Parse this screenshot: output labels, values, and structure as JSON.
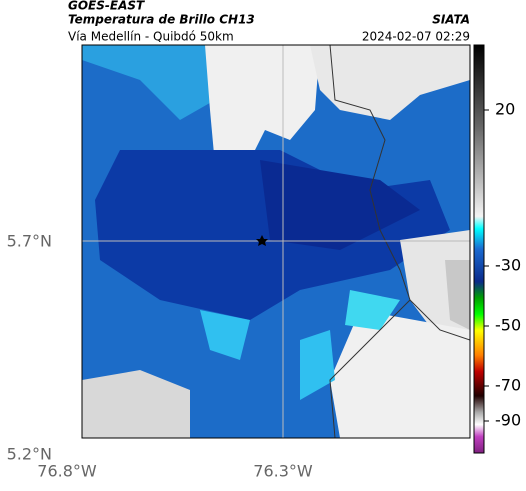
{
  "header": {
    "satellite": "GOES-EAST",
    "product": "Temperatura de Brillo CH13",
    "route": "Vía Medellín - Quibdó 50km",
    "source": "SIATA",
    "timestamp": "2024-02-07 02:29"
  },
  "map": {
    "lat_labels": [
      "5.7°N",
      "5.2°N"
    ],
    "lon_labels": [
      "76.8°W",
      "76.3°W"
    ]
  },
  "colorbar": {
    "ticks": [
      20,
      -30,
      -50,
      -70,
      -90
    ]
  }
}
